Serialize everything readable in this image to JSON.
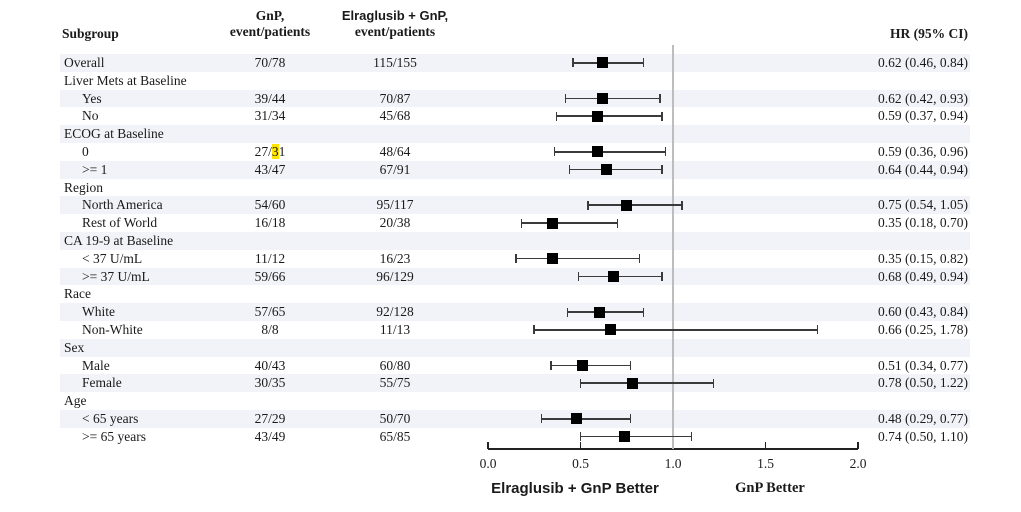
{
  "header": {
    "subgroup": "Subgroup",
    "gnp_line1": "GnP,",
    "gnp_line2": "event/patients",
    "elra_line1": "Elraglusib + GnP,",
    "elra_line2": "event/patients",
    "hr": "HR (95% CI)"
  },
  "axis": {
    "tick_labels": [
      "0.0",
      "0.5",
      "1.0",
      "1.5",
      "2.0"
    ],
    "tick_values": [
      0.0,
      0.5,
      1.0,
      1.5,
      2.0
    ],
    "range": [
      0.0,
      2.0
    ],
    "ref_line": 1.0,
    "left_label": "Elraglusib + GnP Better",
    "right_label": "GnP Better"
  },
  "colors": {
    "row_shade": "#f2f3f8",
    "ref_line": "#bdbdbd",
    "marker": "#000000",
    "ci_line": "#3a3a3a",
    "text": "#1a1a1a",
    "highlight": "#ffe600"
  },
  "chart_data": {
    "type": "forest",
    "columns": [
      "Subgroup",
      "GnP, event/patients",
      "Elraglusib + GnP, event/patients",
      "HR (95% CI)"
    ],
    "rows": [
      {
        "label": "Overall",
        "category": false,
        "indent": 0,
        "gnp": "70/78",
        "elra": "115/155",
        "hr": 0.62,
        "ci_lo": 0.46,
        "ci_hi": 0.84,
        "hr_text": "0.62 (0.46, 0.84)"
      },
      {
        "label": "Liver Mets at Baseline",
        "category": true
      },
      {
        "label": "Yes",
        "category": false,
        "indent": 1,
        "gnp": "39/44",
        "elra": "70/87",
        "hr": 0.62,
        "ci_lo": 0.42,
        "ci_hi": 0.93,
        "hr_text": "0.62 (0.42, 0.93)"
      },
      {
        "label": "No",
        "category": false,
        "indent": 1,
        "gnp": "31/34",
        "elra": "45/68",
        "hr": 0.59,
        "ci_lo": 0.37,
        "ci_hi": 0.94,
        "hr_text": "0.59 (0.37, 0.94)"
      },
      {
        "label": "ECOG at Baseline",
        "category": true
      },
      {
        "label": "0",
        "category": false,
        "indent": 1,
        "gnp": "27/31",
        "gnp_mark": {
          "pre": "27/",
          "mark": "3",
          "post": "1"
        },
        "elra": "48/64",
        "hr": 0.59,
        "ci_lo": 0.36,
        "ci_hi": 0.96,
        "hr_text": "0.59 (0.36, 0.96)"
      },
      {
        "label": ">= 1",
        "category": false,
        "indent": 1,
        "gnp": "43/47",
        "elra": "67/91",
        "hr": 0.64,
        "ci_lo": 0.44,
        "ci_hi": 0.94,
        "hr_text": "0.64 (0.44, 0.94)"
      },
      {
        "label": "Region",
        "category": true
      },
      {
        "label": "North America",
        "category": false,
        "indent": 1,
        "gnp": "54/60",
        "elra": "95/117",
        "hr": 0.75,
        "ci_lo": 0.54,
        "ci_hi": 1.05,
        "hr_text": "0.75 (0.54, 1.05)"
      },
      {
        "label": "Rest of World",
        "category": false,
        "indent": 1,
        "gnp": "16/18",
        "elra": "20/38",
        "hr": 0.35,
        "ci_lo": 0.18,
        "ci_hi": 0.7,
        "hr_text": "0.35 (0.18, 0.70)"
      },
      {
        "label": "CA 19-9 at Baseline",
        "category": true
      },
      {
        "label": "< 37 U/mL",
        "category": false,
        "indent": 1,
        "gnp": "11/12",
        "elra": "16/23",
        "hr": 0.35,
        "ci_lo": 0.15,
        "ci_hi": 0.82,
        "hr_text": "0.35 (0.15, 0.82)"
      },
      {
        "label": ">= 37 U/mL",
        "category": false,
        "indent": 1,
        "gnp": "59/66",
        "elra": "96/129",
        "hr": 0.68,
        "ci_lo": 0.49,
        "ci_hi": 0.94,
        "hr_text": "0.68 (0.49, 0.94)"
      },
      {
        "label": "Race",
        "category": true
      },
      {
        "label": "White",
        "category": false,
        "indent": 1,
        "gnp": "57/65",
        "elra": "92/128",
        "hr": 0.6,
        "ci_lo": 0.43,
        "ci_hi": 0.84,
        "hr_text": "0.60 (0.43, 0.84)"
      },
      {
        "label": "Non-White",
        "category": false,
        "indent": 1,
        "gnp": "8/8",
        "elra": "11/13",
        "hr": 0.66,
        "ci_lo": 0.25,
        "ci_hi": 1.78,
        "hr_text": "0.66 (0.25, 1.78)"
      },
      {
        "label": "Sex",
        "category": true
      },
      {
        "label": "Male",
        "category": false,
        "indent": 1,
        "gnp": "40/43",
        "elra": "60/80",
        "hr": 0.51,
        "ci_lo": 0.34,
        "ci_hi": 0.77,
        "hr_text": "0.51 (0.34, 0.77)"
      },
      {
        "label": "Female",
        "category": false,
        "indent": 1,
        "gnp": "30/35",
        "elra": "55/75",
        "hr": 0.78,
        "ci_lo": 0.5,
        "ci_hi": 1.22,
        "hr_text": "0.78 (0.50, 1.22)"
      },
      {
        "label": "Age",
        "category": true
      },
      {
        "label": "< 65 years",
        "category": false,
        "indent": 1,
        "gnp": "27/29",
        "elra": "50/70",
        "hr": 0.48,
        "ci_lo": 0.29,
        "ci_hi": 0.77,
        "hr_text": "0.48 (0.29, 0.77)"
      },
      {
        "label": ">= 65 years",
        "category": false,
        "indent": 1,
        "gnp": "43/49",
        "elra": "65/85",
        "hr": 0.74,
        "ci_lo": 0.5,
        "ci_hi": 1.1,
        "hr_text": "0.74 (0.50, 1.10)"
      }
    ]
  }
}
